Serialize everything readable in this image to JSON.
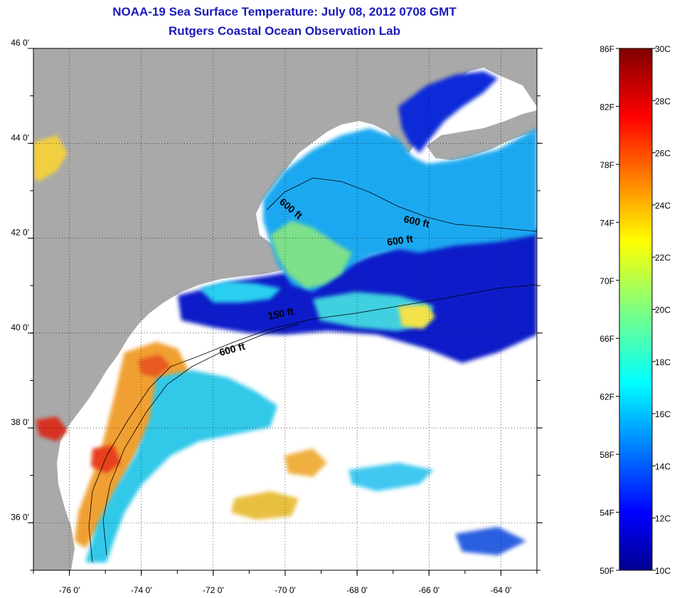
{
  "header": {
    "title": "NOAA-19 Sea Surface Temperature:  July 08, 2012 0708 GMT",
    "subtitle": "Rutgers Coastal Ocean Observation Lab"
  },
  "map": {
    "lon_range": [
      -77,
      -63
    ],
    "lat_range": [
      35,
      46
    ],
    "lat_ticks": [
      {
        "value": 46,
        "label": "46 0'"
      },
      {
        "value": 44,
        "label": "44 0'"
      },
      {
        "value": 42,
        "label": "42 0'"
      },
      {
        "value": 40,
        "label": "40 0'"
      },
      {
        "value": 38,
        "label": "38 0'"
      },
      {
        "value": 36,
        "label": "36 0'"
      }
    ],
    "lon_ticks": [
      {
        "value": -76,
        "label": "-76 0'"
      },
      {
        "value": -74,
        "label": "-74 0'"
      },
      {
        "value": -72,
        "label": "-72 0'"
      },
      {
        "value": -70,
        "label": "-70 0'"
      },
      {
        "value": -68,
        "label": "-68 0'"
      },
      {
        "value": -66,
        "label": "-66 0'"
      },
      {
        "value": -64,
        "label": "-64 0'"
      }
    ],
    "contour_labels": [
      "600 ft",
      "600 ft",
      "600 ft",
      "150 ft",
      "600 ft"
    ],
    "colors": {
      "land": "#a9a9a9",
      "cloud": "#ffffff",
      "contour": "#000000"
    }
  },
  "colorbar": {
    "fahrenheit_labels": [
      "86F",
      "82F",
      "78F",
      "74F",
      "70F",
      "66F",
      "62F",
      "58F",
      "54F",
      "50F"
    ],
    "celsius_labels": [
      "30C",
      "28C",
      "26C",
      "24C",
      "22C",
      "20C",
      "18C",
      "16C",
      "14C",
      "12C",
      "10C"
    ],
    "range_c": [
      10,
      30
    ],
    "colormap": "jet"
  }
}
